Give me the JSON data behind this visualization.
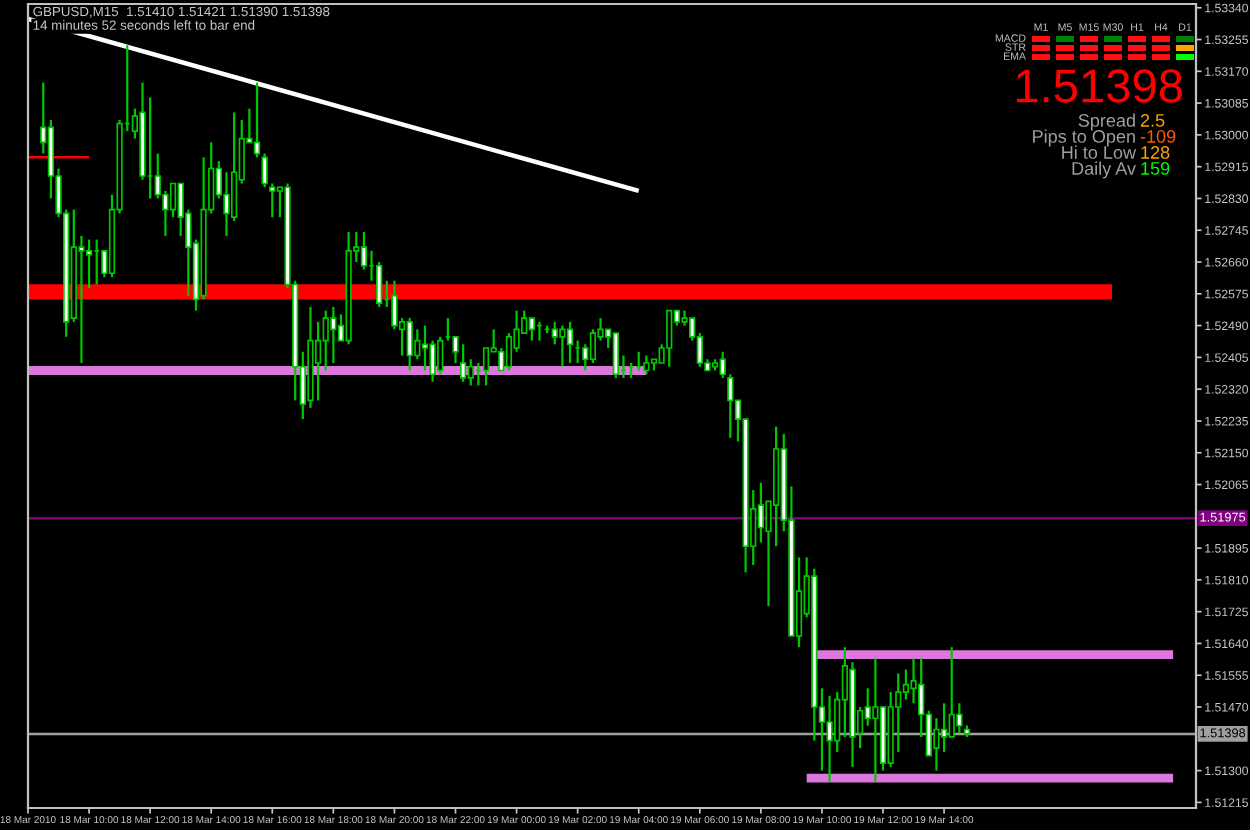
{
  "chart_data": {
    "type": "candlestick",
    "title": "GBPUSD,M15  1.51410 1.51421 1.51390 1.51398",
    "subtitle": "14 minutes 52 seconds left to bar end",
    "color": "#00c800",
    "x": [
      "2010-03-18T08:30",
      "2010-03-18T08:45",
      "2010-03-18T09:00",
      "2010-03-18T09:15",
      "2010-03-18T09:30",
      "2010-03-18T09:45",
      "2010-03-18T10:00",
      "2010-03-18T10:15",
      "2010-03-18T10:30",
      "2010-03-18T10:45",
      "2010-03-18T11:00",
      "2010-03-18T11:15",
      "2010-03-18T11:30",
      "2010-03-18T11:45",
      "2010-03-18T12:00",
      "2010-03-18T12:15",
      "2010-03-18T12:30",
      "2010-03-18T12:45",
      "2010-03-18T13:00",
      "2010-03-18T13:15",
      "2010-03-18T13:30",
      "2010-03-18T13:45",
      "2010-03-18T14:00",
      "2010-03-18T14:15",
      "2010-03-18T14:30",
      "2010-03-18T14:45",
      "2010-03-18T15:00",
      "2010-03-18T15:15",
      "2010-03-18T15:30",
      "2010-03-18T15:45",
      "2010-03-18T16:00",
      "2010-03-18T16:15",
      "2010-03-18T16:30",
      "2010-03-18T16:45",
      "2010-03-18T17:00",
      "2010-03-18T17:15",
      "2010-03-18T17:30",
      "2010-03-18T17:45",
      "2010-03-18T18:00",
      "2010-03-18T18:15",
      "2010-03-18T18:30",
      "2010-03-18T18:45",
      "2010-03-18T19:00",
      "2010-03-18T19:15",
      "2010-03-18T19:30",
      "2010-03-18T19:45",
      "2010-03-18T20:00",
      "2010-03-18T20:15",
      "2010-03-18T20:30",
      "2010-03-18T20:45",
      "2010-03-18T21:00",
      "2010-03-18T21:15",
      "2010-03-18T21:30",
      "2010-03-18T21:45",
      "2010-03-18T22:00",
      "2010-03-18T22:15",
      "2010-03-18T22:30",
      "2010-03-18T22:45",
      "2010-03-18T23:00",
      "2010-03-18T23:15",
      "2010-03-18T23:30",
      "2010-03-18T23:45",
      "2010-03-19T00:00",
      "2010-03-19T00:15",
      "2010-03-19T00:30",
      "2010-03-19T00:45",
      "2010-03-19T01:00",
      "2010-03-19T01:15",
      "2010-03-19T01:30",
      "2010-03-19T01:45",
      "2010-03-19T02:00",
      "2010-03-19T02:15",
      "2010-03-19T02:30",
      "2010-03-19T02:45",
      "2010-03-19T03:00",
      "2010-03-19T03:15",
      "2010-03-19T03:30",
      "2010-03-19T03:45",
      "2010-03-19T04:00",
      "2010-03-19T04:15",
      "2010-03-19T04:30",
      "2010-03-19T04:45",
      "2010-03-19T05:00",
      "2010-03-19T05:15",
      "2010-03-19T05:30",
      "2010-03-19T05:45",
      "2010-03-19T06:00",
      "2010-03-19T06:15",
      "2010-03-19T06:30",
      "2010-03-19T06:45",
      "2010-03-19T07:00",
      "2010-03-19T07:15",
      "2010-03-19T07:30",
      "2010-03-19T07:45",
      "2010-03-19T08:00",
      "2010-03-19T08:15",
      "2010-03-19T08:30",
      "2010-03-19T08:45",
      "2010-03-19T09:00",
      "2010-03-19T09:15",
      "2010-03-19T09:30",
      "2010-03-19T09:45",
      "2010-03-19T10:00",
      "2010-03-19T10:15",
      "2010-03-19T10:30",
      "2010-03-19T10:45",
      "2010-03-19T11:00",
      "2010-03-19T11:15",
      "2010-03-19T11:30",
      "2010-03-19T11:45",
      "2010-03-19T12:00",
      "2010-03-19T12:15",
      "2010-03-19T12:30",
      "2010-03-19T12:45",
      "2010-03-19T13:00",
      "2010-03-19T13:15",
      "2010-03-19T13:30",
      "2010-03-19T13:45",
      "2010-03-19T14:00",
      "2010-03-19T14:15",
      "2010-03-19T14:30",
      "2010-03-19T14:45"
    ],
    "ohlc": [
      [
        1.5302,
        1.5314,
        1.5295,
        1.5298
      ],
      [
        1.5302,
        1.5304,
        1.5283,
        1.5289
      ],
      [
        1.5289,
        1.5291,
        1.5278,
        1.5279
      ],
      [
        1.5279,
        1.528,
        1.5246,
        1.525
      ],
      [
        1.5251,
        1.528,
        1.525,
        1.527
      ],
      [
        1.527,
        1.5273,
        1.5239,
        1.5269
      ],
      [
        1.5269,
        1.5272,
        1.5259,
        1.5268
      ],
      [
        1.5269,
        1.5272,
        1.526,
        1.5269
      ],
      [
        1.5269,
        1.5269,
        1.5262,
        1.5263
      ],
      [
        1.5263,
        1.5284,
        1.5262,
        1.528
      ],
      [
        1.528,
        1.5304,
        1.5279,
        1.5303
      ],
      [
        1.5303,
        1.5324,
        1.5301,
        1.5303
      ],
      [
        1.5301,
        1.5307,
        1.5299,
        1.5305
      ],
      [
        1.5306,
        1.5314,
        1.5288,
        1.5289
      ],
      [
        1.5289,
        1.531,
        1.5283,
        1.5289
      ],
      [
        1.5289,
        1.5295,
        1.5283,
        1.5284
      ],
      [
        1.5284,
        1.5285,
        1.5273,
        1.528
      ],
      [
        1.528,
        1.5287,
        1.5278,
        1.5287
      ],
      [
        1.5287,
        1.5287,
        1.5273,
        1.5278
      ],
      [
        1.5279,
        1.528,
        1.5257,
        1.527
      ],
      [
        1.5271,
        1.5272,
        1.5253,
        1.5256
      ],
      [
        1.5257,
        1.5294,
        1.5256,
        1.528
      ],
      [
        1.528,
        1.5298,
        1.5279,
        1.5291
      ],
      [
        1.5291,
        1.5293,
        1.5283,
        1.5284
      ],
      [
        1.5284,
        1.529,
        1.5273,
        1.5279
      ],
      [
        1.5278,
        1.5306,
        1.5277,
        1.529
      ],
      [
        1.5288,
        1.5304,
        1.5287,
        1.5299
      ],
      [
        1.5299,
        1.5307,
        1.5298,
        1.5298
      ],
      [
        1.5298,
        1.5314,
        1.5294,
        1.5295
      ],
      [
        1.5294,
        1.5295,
        1.5286,
        1.5287
      ],
      [
        1.5286,
        1.5287,
        1.5278,
        1.5285
      ],
      [
        1.5285,
        1.5286,
        1.5278,
        1.5286
      ],
      [
        1.5286,
        1.5287,
        1.5259,
        1.526
      ],
      [
        1.526,
        1.5261,
        1.5229,
        1.5238
      ],
      [
        1.5238,
        1.5242,
        1.5224,
        1.5228
      ],
      [
        1.5229,
        1.5254,
        1.5227,
        1.5245
      ],
      [
        1.5239,
        1.525,
        1.5229,
        1.5245
      ],
      [
        1.5245,
        1.5253,
        1.5237,
        1.5251
      ],
      [
        1.5251,
        1.5254,
        1.5239,
        1.5248
      ],
      [
        1.5249,
        1.5252,
        1.5245,
        1.5245
      ],
      [
        1.5245,
        1.5274,
        1.5244,
        1.5269
      ],
      [
        1.5269,
        1.5274,
        1.5266,
        1.527
      ],
      [
        1.527,
        1.5274,
        1.5264,
        1.5265
      ],
      [
        1.5265,
        1.5269,
        1.5261,
        1.5265
      ],
      [
        1.5265,
        1.5266,
        1.5254,
        1.5255
      ],
      [
        1.5256,
        1.5261,
        1.5254,
        1.5256
      ],
      [
        1.5257,
        1.5261,
        1.5248,
        1.5249
      ],
      [
        1.5248,
        1.5251,
        1.5241,
        1.525
      ],
      [
        1.525,
        1.5251,
        1.5237,
        1.5241
      ],
      [
        1.5241,
        1.5248,
        1.524,
        1.5245
      ],
      [
        1.5244,
        1.5249,
        1.5237,
        1.5243
      ],
      [
        1.5244,
        1.5245,
        1.5234,
        1.5236
      ],
      [
        1.5237,
        1.5246,
        1.5236,
        1.5245
      ],
      [
        1.5246,
        1.5251,
        1.5245,
        1.5246
      ],
      [
        1.5246,
        1.5246,
        1.5239,
        1.5242
      ],
      [
        1.5239,
        1.5244,
        1.5234,
        1.5235
      ],
      [
        1.5235,
        1.524,
        1.5233,
        1.5238
      ],
      [
        1.5237,
        1.5239,
        1.5233,
        1.5237
      ],
      [
        1.5237,
        1.5243,
        1.5233,
        1.5243
      ],
      [
        1.5242,
        1.5248,
        1.5242,
        1.5243
      ],
      [
        1.5242,
        1.5243,
        1.5237,
        1.5237
      ],
      [
        1.5238,
        1.5247,
        1.5237,
        1.5246
      ],
      [
        1.5243,
        1.5253,
        1.5242,
        1.5248
      ],
      [
        1.5247,
        1.5253,
        1.5247,
        1.5251
      ],
      [
        1.5251,
        1.5251,
        1.5245,
        1.5248
      ],
      [
        1.5249,
        1.525,
        1.5245,
        1.5249
      ],
      [
        1.5248,
        1.5249,
        1.5247,
        1.5248
      ],
      [
        1.5248,
        1.525,
        1.5244,
        1.5246
      ],
      [
        1.5246,
        1.5249,
        1.5238,
        1.5248
      ],
      [
        1.5248,
        1.525,
        1.5239,
        1.5244
      ],
      [
        1.5243,
        1.5245,
        1.5239,
        1.5243
      ],
      [
        1.5243,
        1.5244,
        1.5237,
        1.524
      ],
      [
        1.524,
        1.5248,
        1.5239,
        1.5247
      ],
      [
        1.5246,
        1.5251,
        1.5245,
        1.5248
      ],
      [
        1.5248,
        1.5248,
        1.5243,
        1.5246
      ],
      [
        1.5247,
        1.5247,
        1.5235,
        1.5236
      ],
      [
        1.5237,
        1.5241,
        1.5235,
        1.5237
      ],
      [
        1.5238,
        1.5239,
        1.5235,
        1.5238
      ],
      [
        1.5238,
        1.5242,
        1.5237,
        1.5238
      ],
      [
        1.5237,
        1.5241,
        1.5236,
        1.5239
      ],
      [
        1.5239,
        1.524,
        1.5237,
        1.524
      ],
      [
        1.5239,
        1.5244,
        1.5239,
        1.5243
      ],
      [
        1.5243,
        1.5253,
        1.5238,
        1.5253
      ],
      [
        1.5253,
        1.5253,
        1.5249,
        1.525
      ],
      [
        1.525,
        1.5253,
        1.5249,
        1.5251
      ],
      [
        1.5251,
        1.5251,
        1.5245,
        1.5246
      ],
      [
        1.5246,
        1.5247,
        1.5238,
        1.5239
      ],
      [
        1.5239,
        1.524,
        1.5237,
        1.5237
      ],
      [
        1.5238,
        1.524,
        1.5237,
        1.5239
      ],
      [
        1.524,
        1.5242,
        1.5235,
        1.5236
      ],
      [
        1.5235,
        1.5236,
        1.5219,
        1.5229
      ],
      [
        1.5229,
        1.5229,
        1.5218,
        1.5224
      ],
      [
        1.5224,
        1.5224,
        1.5183,
        1.519
      ],
      [
        1.519,
        1.5205,
        1.5185,
        1.52
      ],
      [
        1.5201,
        1.5207,
        1.5191,
        1.5195
      ],
      [
        1.5194,
        1.5202,
        1.5174,
        1.5202
      ],
      [
        1.5201,
        1.5222,
        1.519,
        1.5216
      ],
      [
        1.5216,
        1.522,
        1.5194,
        1.5197
      ],
      [
        1.5197,
        1.5206,
        1.5166,
        1.5166
      ],
      [
        1.5166,
        1.5187,
        1.5163,
        1.5178
      ],
      [
        1.5172,
        1.5187,
        1.5171,
        1.5182
      ],
      [
        1.5182,
        1.5184,
        1.5138,
        1.5147
      ],
      [
        1.5147,
        1.5152,
        1.513,
        1.5143
      ],
      [
        1.5143,
        1.515,
        1.5127,
        1.5138
      ],
      [
        1.5138,
        1.5151,
        1.5135,
        1.5149
      ],
      [
        1.5149,
        1.5163,
        1.5139,
        1.5158
      ],
      [
        1.5157,
        1.5159,
        1.5131,
        1.5139
      ],
      [
        1.514,
        1.5147,
        1.5136,
        1.5146
      ],
      [
        1.5147,
        1.5152,
        1.5142,
        1.5144
      ],
      [
        1.5144,
        1.516,
        1.5127,
        1.5147
      ],
      [
        1.5147,
        1.5147,
        1.513,
        1.5132
      ],
      [
        1.5132,
        1.5151,
        1.5131,
        1.5147
      ],
      [
        1.5147,
        1.5156,
        1.5135,
        1.5151
      ],
      [
        1.5151,
        1.5157,
        1.5149,
        1.5153
      ],
      [
        1.5152,
        1.516,
        1.5148,
        1.5154
      ],
      [
        1.5153,
        1.516,
        1.5139,
        1.5145
      ],
      [
        1.5145,
        1.5146,
        1.5134,
        1.5134
      ],
      [
        1.5136,
        1.5144,
        1.513,
        1.5141
      ],
      [
        1.5141,
        1.5148,
        1.5135,
        1.5139
      ],
      [
        1.5139,
        1.5163,
        1.5139,
        1.5145
      ],
      [
        1.5145,
        1.5148,
        1.514,
        1.5142
      ],
      [
        1.5141,
        1.51421,
        1.5139,
        1.51398
      ]
    ],
    "series": [
      {
        "type": "line",
        "color": "#ffffff",
        "x": [
          "2010-03-18T08:00",
          "2010-03-19T04:00"
        ],
        "values": [
          1.5331,
          1.5285
        ]
      },
      {
        "type": "line",
        "color": "#ff0000",
        "x": [
          "2010-03-18T08:00",
          "2010-03-19T19:30"
        ],
        "values": [
          1.5258,
          1.5258
        ]
      },
      {
        "type": "line",
        "color": "#dd77dd",
        "x": [
          "2010-03-18T08:00",
          "2010-03-19T04:15"
        ],
        "values": [
          1.5237,
          1.5237
        ]
      },
      {
        "type": "line",
        "color": "#dd77dd",
        "x": [
          "2010-03-19T09:45",
          "2010-03-19T21:30"
        ],
        "values": [
          1.5161,
          1.5161
        ]
      },
      {
        "type": "line",
        "color": "#dd77dd",
        "x": [
          "2010-03-19T09:30",
          "2010-03-19T21:30"
        ],
        "values": [
          1.5128,
          1.5128
        ]
      },
      {
        "type": "line",
        "color": "#ff0000",
        "x": [
          "2010-03-18T08:00",
          "2010-03-18T10:00"
        ],
        "values": [
          1.5294,
          1.5294
        ]
      }
    ],
    "ref_lines": [
      {
        "axis": "y",
        "value": 1.51975,
        "label": "1.51975",
        "color": "#800080"
      },
      {
        "axis": "y",
        "value": 1.51398,
        "label": "1.51398",
        "color": "#a0a0a0"
      }
    ],
    "xlim": [
      "2010-03-18T08:00",
      "2010-03-19T22:15"
    ],
    "ylim": [
      1.512,
      1.5335
    ],
    "xticks": [
      {
        "value": "2010-03-18T08:00",
        "label": "18 Mar 2010"
      },
      {
        "value": "2010-03-18T10:00",
        "label": "18 Mar 10:00"
      },
      {
        "value": "2010-03-18T12:00",
        "label": "18 Mar 12:00"
      },
      {
        "value": "2010-03-18T14:00",
        "label": "18 Mar 14:00"
      },
      {
        "value": "2010-03-18T16:00",
        "label": "18 Mar 16:00"
      },
      {
        "value": "2010-03-18T18:00",
        "label": "18 Mar 18:00"
      },
      {
        "value": "2010-03-18T20:00",
        "label": "18 Mar 20:00"
      },
      {
        "value": "2010-03-18T22:00",
        "label": "18 Mar 22:00"
      },
      {
        "value": "2010-03-19T00:00",
        "label": "19 Mar 00:00"
      },
      {
        "value": "2010-03-19T02:00",
        "label": "19 Mar 02:00"
      },
      {
        "value": "2010-03-19T04:00",
        "label": "19 Mar 04:00"
      },
      {
        "value": "2010-03-19T06:00",
        "label": "19 Mar 06:00"
      },
      {
        "value": "2010-03-19T08:00",
        "label": "19 Mar 08:00"
      },
      {
        "value": "2010-03-19T10:00",
        "label": "19 Mar 10:00"
      },
      {
        "value": "2010-03-19T12:00",
        "label": "19 Mar 12:00"
      },
      {
        "value": "2010-03-19T14:00",
        "label": "19 Mar 14:00"
      }
    ],
    "yticks": [
      {
        "value": 1.5334,
        "label": "1.53340"
      },
      {
        "value": 1.53255,
        "label": "1.53255"
      },
      {
        "value": 1.5317,
        "label": "1.53170"
      },
      {
        "value": 1.53085,
        "label": "1.53085"
      },
      {
        "value": 1.53,
        "label": "1.53000"
      },
      {
        "value": 1.52915,
        "label": "1.52915"
      },
      {
        "value": 1.5283,
        "label": "1.52830"
      },
      {
        "value": 1.52745,
        "label": "1.52745"
      },
      {
        "value": 1.5266,
        "label": "1.52660"
      },
      {
        "value": 1.52575,
        "label": "1.52575"
      },
      {
        "value": 1.5249,
        "label": "1.52490"
      },
      {
        "value": 1.52405,
        "label": "1.52405"
      },
      {
        "value": 1.5232,
        "label": "1.52320"
      },
      {
        "value": 1.52235,
        "label": "1.52235"
      },
      {
        "value": 1.5215,
        "label": "1.52150"
      },
      {
        "value": 1.52065,
        "label": "1.52065"
      },
      {
        "value": 1.51895,
        "label": "1.51895"
      },
      {
        "value": 1.5181,
        "label": "1.51810"
      },
      {
        "value": 1.51725,
        "label": "1.51725"
      },
      {
        "value": 1.5164,
        "label": "1.51640"
      },
      {
        "value": 1.51555,
        "label": "1.51555"
      },
      {
        "value": 1.5147,
        "label": "1.51470"
      },
      {
        "value": 1.513,
        "label": "1.51300"
      },
      {
        "value": 1.51215,
        "label": "1.51215"
      }
    ],
    "annotations": [
      "M1",
      "M5",
      "M15",
      "M30",
      "H1",
      "H4",
      "D1",
      "MACD",
      "STR",
      "EMA",
      "1.51398",
      "Spread",
      "2.5",
      "Pips to Open",
      "-109",
      "Hi to Low",
      "128",
      "Daily Av",
      "159"
    ]
  }
}
